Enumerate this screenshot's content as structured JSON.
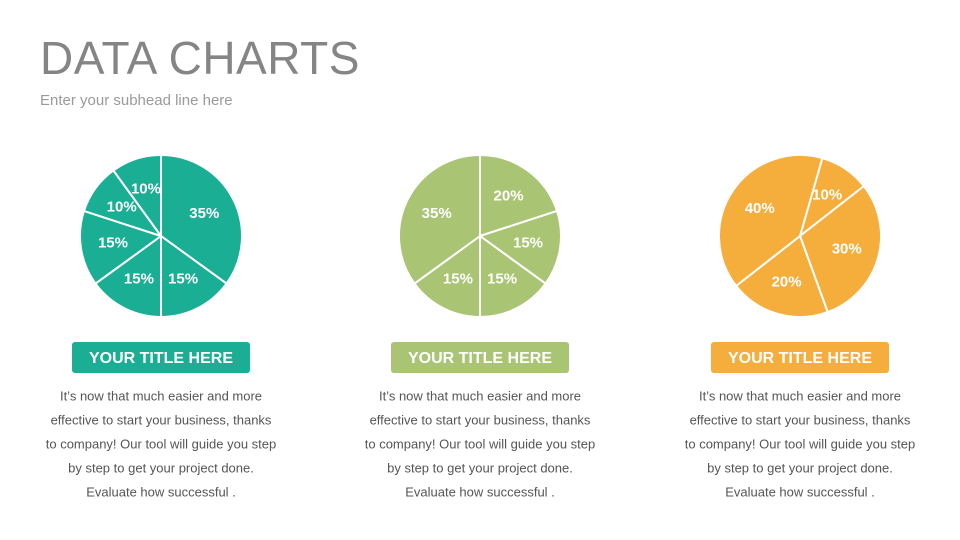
{
  "header": {
    "title": "DATA CHARTS",
    "subhead": "Enter your subhead line here"
  },
  "chart_data": [
    {
      "type": "pie",
      "color": "#1aaf95",
      "title": "YOUR TITLE HERE",
      "values": [
        35,
        15,
        15,
        15,
        10,
        10
      ],
      "value_labels": [
        "35%",
        "15%",
        "15%",
        "15%",
        "10%",
        "10%"
      ],
      "caption": [
        "It’s now that much easier and more",
        "effective to start your business, thanks",
        "to company! Our tool will guide you step",
        "by step to get your project done.",
        "Evaluate how successful ."
      ]
    },
    {
      "type": "pie",
      "color": "#a9c574",
      "title": "YOUR TITLE HERE",
      "values": [
        20,
        15,
        15,
        15,
        35
      ],
      "value_labels": [
        "20%",
        "15%",
        "15%",
        "15%",
        "35%"
      ],
      "caption": [
        "It’s now that much easier and more",
        "effective to start your business, thanks",
        "to company! Our tool will guide you step",
        "by step to get your project done.",
        "Evaluate how successful ."
      ]
    },
    {
      "type": "pie",
      "color": "#f5ae3c",
      "title": "YOUR TITLE HERE",
      "values": [
        10,
        30,
        20,
        40
      ],
      "value_labels": [
        "10%",
        "30%",
        "20%",
        "40%"
      ],
      "caption": [
        "It’s now that much easier and more",
        "effective to start your business, thanks",
        "to company! Our tool will guide you step",
        "by step to get your project done.",
        "Evaluate how successful ."
      ]
    }
  ]
}
